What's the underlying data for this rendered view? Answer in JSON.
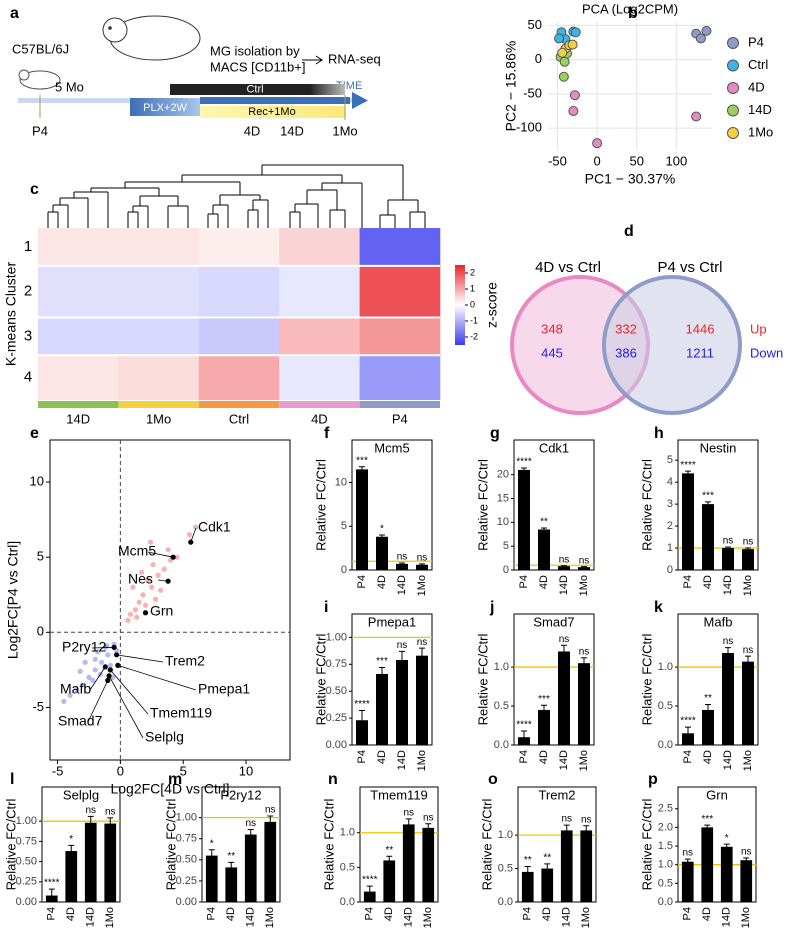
{
  "panel_labels": [
    "a",
    "b",
    "c",
    "d",
    "e",
    "f",
    "g",
    "h",
    "i",
    "j",
    "k",
    "l",
    "m",
    "n",
    "o",
    "p"
  ],
  "diagram": {
    "strain": "C57BL/6J",
    "isolation": [
      "MG isolation by",
      "MACS [CD11b+]"
    ],
    "sequencing": "RNA-seq",
    "axis": "TIME",
    "age": "5 Mo",
    "control": "Ctrl",
    "depletion": "PLX+2W",
    "recovery": "Rec+1Mo",
    "timepoints": [
      "P4",
      "4D",
      "14D",
      "1Mo"
    ]
  },
  "venn": {
    "sets": [
      "4D vs Ctrl",
      "P4 vs Ctrl"
    ],
    "up": [
      348,
      332,
      1446
    ],
    "down": [
      445,
      386,
      1211
    ],
    "labels": [
      "Up",
      "Down"
    ]
  },
  "chart_data": [
    {
      "type": "scatter",
      "title": "PCA (Log2CPM)",
      "xlabel": "PC1 − 30.37%",
      "ylabel": "PC2 − 15.86%",
      "xlim": [
        -62,
        145
      ],
      "ylim": [
        -132,
        55
      ],
      "xticks": [
        -50,
        0,
        50,
        100
      ],
      "yticks": [
        -100,
        -50,
        0,
        50
      ],
      "grid": true,
      "legend": "right",
      "series": [
        {
          "name": "P4",
          "color": "#8e9cc9",
          "x": [
            125,
            131,
            138
          ],
          "y": [
            38,
            31,
            42
          ]
        },
        {
          "name": "Ctrl",
          "color": "#3cb4e5",
          "x": [
            -45,
            -40,
            -30,
            -27,
            -48
          ],
          "y": [
            40,
            30,
            41,
            40,
            31
          ]
        },
        {
          "name": "4D",
          "color": "#e78ac3",
          "x": [
            -28,
            -30,
            125,
            0
          ],
          "y": [
            -52,
            -75,
            -83,
            -122
          ]
        },
        {
          "name": "14D",
          "color": "#9ad05c",
          "x": [
            -46,
            -41,
            -42,
            -38
          ],
          "y": [
            4,
            -3,
            -25,
            9
          ]
        },
        {
          "name": "1Mo",
          "color": "#f4d03f",
          "x": [
            -40,
            -35,
            -44,
            -31
          ],
          "y": [
            16,
            21,
            10,
            22
          ]
        }
      ]
    },
    {
      "type": "heatmap",
      "ylabel": "K-means Cluster",
      "rows": [
        "1",
        "2",
        "3",
        "4"
      ],
      "columns": [
        "14D",
        "1Mo",
        "Ctrl",
        "4D",
        "P4"
      ],
      "column_colors": [
        "#8cc152",
        "#f4d03f",
        "#f59a44",
        "#e79ccf",
        "#8e9cc9"
      ],
      "values": [
        [
          0.3,
          0.3,
          0.2,
          0.5,
          -2
        ],
        [
          -0.4,
          -0.4,
          -0.5,
          -0.3,
          2
        ],
        [
          -0.5,
          -0.5,
          -0.7,
          0.8,
          1.2
        ],
        [
          0.3,
          0.4,
          1.0,
          -0.3,
          -1.3
        ]
      ],
      "colorbar": {
        "label": "z-score",
        "lim": [
          -2.5,
          2.5
        ],
        "ticks": [
          2,
          1,
          0,
          -1,
          -2
        ]
      }
    },
    {
      "type": "scatter",
      "xlabel": "Log2FC[4D vs Ctrl]",
      "ylabel": "Log2FC[P4 vs Ctrl]",
      "xlim": [
        -5.6,
        13.5
      ],
      "ylim": [
        -8.5,
        12.8
      ],
      "xticks": [
        -5,
        0,
        5,
        10
      ],
      "yticks": [
        -5,
        0,
        5,
        10
      ],
      "grid": false,
      "frame": true,
      "zero_lines": true,
      "series": [
        {
          "color": "#ef5350",
          "x": [
            1.2,
            1.8,
            2.5,
            3.0,
            3.5,
            4.0,
            1.5,
            2.2,
            2.8,
            0.8,
            1.0,
            3.8,
            4.5,
            5.5,
            2.0,
            2.6,
            1.3,
            3.2,
            0.6,
            6.0,
            2.4,
            1.7
          ],
          "y": [
            1.5,
            2.5,
            3.0,
            3.8,
            4.2,
            4.8,
            2.0,
            3.5,
            2.2,
            1.2,
            3.0,
            5.5,
            5.0,
            6.5,
            1.8,
            4.5,
            1.0,
            2.8,
            0.8,
            7.0,
            6.0,
            4.0
          ]
        },
        {
          "color": "#5b63e8",
          "x": [
            -0.5,
            -1.0,
            -1.5,
            -2.0,
            -2.5,
            -3.0,
            -3.5,
            -4.0,
            -1.2,
            -0.8,
            -1.8,
            -2.2,
            -0.3,
            -1.6,
            -2.8,
            -4.5,
            -0.6,
            -1.1,
            -3.2,
            -2.0
          ],
          "y": [
            -0.8,
            -1.5,
            -2.0,
            -2.5,
            -3.0,
            -3.5,
            -3.8,
            -4.2,
            -1.0,
            -2.2,
            -1.3,
            -3.2,
            -1.2,
            -2.8,
            -2.0,
            -4.6,
            -3.0,
            -0.9,
            -2.6,
            -1.8
          ]
        }
      ],
      "annotations": [
        {
          "text": "Cdk1",
          "x": 5.6,
          "y": 6.0
        },
        {
          "text": "Mcm5",
          "x": 4.2,
          "y": 5.0
        },
        {
          "text": "Nes",
          "x": 3.8,
          "y": 3.4
        },
        {
          "text": "Grn",
          "x": 2.0,
          "y": 1.3
        },
        {
          "text": "P2ry12",
          "x": -0.5,
          "y": -1.0
        },
        {
          "text": "Trem2",
          "x": -0.3,
          "y": -1.5
        },
        {
          "text": "Pmepa1",
          "x": -0.2,
          "y": -2.2
        },
        {
          "text": "Mafb",
          "x": -1.2,
          "y": -2.3
        },
        {
          "text": "Tmem119",
          "x": -0.8,
          "y": -2.5
        },
        {
          "text": "Selplg",
          "x": -0.9,
          "y": -2.9
        },
        {
          "text": "Smad7",
          "x": -1.0,
          "y": -3.2
        }
      ]
    },
    {
      "type": "bar",
      "title": "Mcm5",
      "ylabel": "Relative FC/Ctrl",
      "categories": [
        "P4",
        "4D",
        "14D",
        "1Mo"
      ],
      "values": [
        11.5,
        3.8,
        0.7,
        0.6
      ],
      "errors": [
        0.3,
        0.2,
        0.1,
        0.1
      ],
      "significance": [
        "***",
        "*",
        "ns",
        "ns"
      ],
      "ylim": [
        0,
        12.8
      ],
      "yticks": [
        0,
        5,
        10
      ],
      "color": "#000000",
      "reference_line": 1,
      "reference_color": "#f2c500"
    },
    {
      "type": "bar",
      "title": "Cdk1",
      "ylabel": "Relative FC/Ctrl",
      "categories": [
        "P4",
        "4D",
        "14D",
        "1Mo"
      ],
      "values": [
        21,
        8.5,
        0.8,
        0.6
      ],
      "errors": [
        0.4,
        0.3,
        0.1,
        0.1
      ],
      "significance": [
        "****",
        "**",
        "ns",
        "ns"
      ],
      "ylim": [
        0,
        23.5
      ],
      "yticks": [
        0,
        5,
        10,
        15,
        20
      ],
      "color": "#000000",
      "reference_line": 1,
      "reference_color": "#f2c500"
    },
    {
      "type": "bar",
      "title": "Nestin",
      "ylabel": "Relative FC/Ctrl",
      "categories": [
        "P4",
        "4D",
        "14D",
        "1Mo"
      ],
      "values": [
        4.4,
        3.0,
        1.0,
        0.95
      ],
      "errors": [
        0.1,
        0.1,
        0.05,
        0.05
      ],
      "significance": [
        "****",
        "***",
        "ns",
        "ns"
      ],
      "ylim": [
        0,
        5.1
      ],
      "yticks": [
        0,
        1,
        2,
        3,
        4,
        5
      ],
      "color": "#000000",
      "reference_line": 1,
      "reference_color": "#f2c500"
    },
    {
      "type": "bar",
      "title": "Pmepa1",
      "ylabel": "Relative FC/Ctrl",
      "categories": [
        "P4",
        "4D",
        "14D",
        "1Mo"
      ],
      "values": [
        0.23,
        0.66,
        0.79,
        0.83
      ],
      "errors": [
        0.09,
        0.06,
        0.08,
        0.07
      ],
      "significance": [
        "****",
        "***",
        "ns",
        "ns"
      ],
      "ylim": [
        0,
        1.05
      ],
      "yticks": [
        {
          "value": 0,
          "label": "0.00"
        },
        {
          "value": 0.25,
          "label": "0.25"
        },
        {
          "value": 0.5,
          "label": "0.50"
        },
        {
          "value": 0.75,
          "label": "0.75"
        },
        {
          "value": 1,
          "label": "1.00"
        }
      ],
      "color": "#000000",
      "reference_line": 1,
      "reference_color": "#f2c500"
    },
    {
      "type": "bar",
      "title": "Smad7",
      "ylabel": "Relative FC/Ctrl",
      "categories": [
        "P4",
        "4D",
        "14D",
        "1Mo"
      ],
      "values": [
        0.1,
        0.45,
        1.2,
        1.05
      ],
      "errors": [
        0.08,
        0.06,
        0.08,
        0.07
      ],
      "significance": [
        "****",
        "***",
        "ns",
        "ns"
      ],
      "ylim": [
        0,
        1.45
      ],
      "yticks": [
        {
          "value": 0,
          "label": "0.0"
        },
        0.5,
        {
          "value": 1,
          "label": "1.0"
        }
      ],
      "color": "#000000",
      "reference_line": 1,
      "reference_color": "#f2c500"
    },
    {
      "type": "bar",
      "title": "Mafb",
      "ylabel": "Relative FC/Ctrl",
      "categories": [
        "P4",
        "4D",
        "14D",
        "1Mo"
      ],
      "values": [
        0.15,
        0.45,
        1.18,
        1.07
      ],
      "errors": [
        0.08,
        0.07,
        0.07,
        0.07
      ],
      "significance": [
        "****",
        "**",
        "ns",
        "ns"
      ],
      "ylim": [
        0,
        1.45
      ],
      "yticks": [
        {
          "value": 0,
          "label": "0.0"
        },
        0.5,
        {
          "value": 1,
          "label": "1.0"
        }
      ],
      "color": "#000000",
      "reference_line": 1,
      "reference_color": "#f2c500"
    },
    {
      "type": "bar",
      "title": "Selplg",
      "ylabel": "Relative FC/Ctrl",
      "categories": [
        "P4",
        "4D",
        "14D",
        "1Mo"
      ],
      "values": [
        0.08,
        0.63,
        0.98,
        0.97
      ],
      "errors": [
        0.08,
        0.07,
        0.08,
        0.07
      ],
      "significance": [
        "****",
        "*",
        "ns",
        "ns"
      ],
      "ylim": [
        0,
        1.2
      ],
      "yticks": [
        {
          "value": 0,
          "label": "0.00"
        },
        0.25,
        {
          "value": 0.5,
          "label": "0.50"
        },
        0.75,
        {
          "value": 1,
          "label": "1.00"
        }
      ],
      "color": "#000000",
      "reference_line": 1,
      "reference_color": "#f2c500"
    },
    {
      "type": "bar",
      "title": "P2ry12",
      "ylabel": "Relative FC/Ctrl",
      "categories": [
        "P4",
        "4D",
        "14D",
        "1Mo"
      ],
      "values": [
        0.55,
        0.41,
        0.8,
        0.95
      ],
      "errors": [
        0.07,
        0.06,
        0.06,
        0.07
      ],
      "significance": [
        "*",
        "**",
        "ns",
        "ns"
      ],
      "ylim": [
        0,
        1.15
      ],
      "yticks": [
        {
          "value": 0,
          "label": "0.00"
        },
        0.25,
        {
          "value": 0.5,
          "label": "0.50"
        },
        0.75,
        {
          "value": 1,
          "label": "1.00"
        }
      ],
      "color": "#000000",
      "reference_line": 1,
      "reference_color": "#f2c500"
    },
    {
      "type": "bar",
      "title": "Tmem119",
      "ylabel": "Relative FC/Ctrl",
      "categories": [
        "P4",
        "4D",
        "14D",
        "1Mo"
      ],
      "values": [
        0.15,
        0.6,
        1.12,
        1.07
      ],
      "errors": [
        0.08,
        0.06,
        0.08,
        0.06
      ],
      "significance": [
        "****",
        "**",
        "ns",
        "ns"
      ],
      "ylim": [
        0,
        1.4
      ],
      "yticks": [
        {
          "value": 0,
          "label": "0.0"
        },
        0.5,
        {
          "value": 1,
          "label": "1.0"
        }
      ],
      "color": "#000000",
      "reference_line": 1,
      "reference_color": "#f2c500"
    },
    {
      "type": "bar",
      "title": "Trem2",
      "ylabel": "Relative FC/Ctrl",
      "categories": [
        "P4",
        "4D",
        "14D",
        "1Mo"
      ],
      "values": [
        0.45,
        0.5,
        1.07,
        1.07
      ],
      "errors": [
        0.08,
        0.07,
        0.08,
        0.07
      ],
      "significance": [
        "**",
        "**",
        "ns",
        "ns"
      ],
      "ylim": [
        0,
        1.45
      ],
      "yticks": [
        {
          "value": 0,
          "label": "0.0"
        },
        0.5,
        {
          "value": 1,
          "label": "1.0"
        }
      ],
      "color": "#000000",
      "reference_line": 1,
      "reference_color": "#f2c500"
    },
    {
      "type": "bar",
      "title": "Grn",
      "ylabel": "Relative FC/Ctrl",
      "categories": [
        "P4",
        "4D",
        "14D",
        "1Mo"
      ],
      "values": [
        1.08,
        2.0,
        1.48,
        1.12
      ],
      "errors": [
        0.07,
        0.06,
        0.07,
        0.06
      ],
      "significance": [
        "ns",
        "***",
        "*",
        "ns"
      ],
      "ylim": [
        0,
        2.6
      ],
      "yticks": [
        {
          "value": 0,
          "label": "0.0"
        },
        0.5,
        {
          "value": 1,
          "label": "1.0"
        },
        1.5,
        {
          "value": 2,
          "label": "2.0"
        },
        2.5
      ],
      "color": "#000000",
      "reference_line": 1,
      "reference_color": "#f2c500"
    }
  ]
}
